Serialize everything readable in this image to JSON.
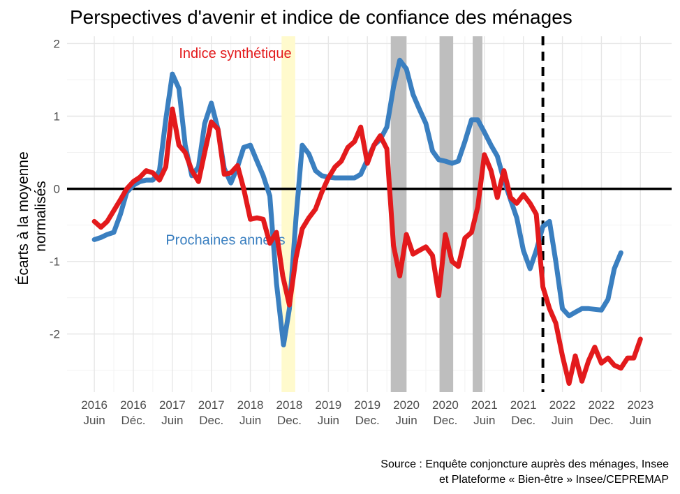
{
  "chart_data": {
    "type": "line",
    "title": "Perspectives d'avenir et indice de confiance des ménages",
    "ylabel_lines": [
      "Écarts à la moyenne",
      "normalisés"
    ],
    "caption_lines": [
      "Source : Enquête conjoncture auprès des ménages, Insee",
      "et Plateforme « Bien-être » Insee/CEPREMAP"
    ],
    "ylim": [
      -2.8,
      2.1
    ],
    "yticks": [
      -2,
      -1,
      0,
      1,
      2
    ],
    "xlim": [
      -0.7,
      14.8
    ],
    "xticks": [
      {
        "pos": 0,
        "line1": "2016",
        "line2": "Juin"
      },
      {
        "pos": 1,
        "line1": "2016",
        "line2": "Déc."
      },
      {
        "pos": 2,
        "line1": "2017",
        "line2": "Juin"
      },
      {
        "pos": 3,
        "line1": "2017",
        "line2": "Dec."
      },
      {
        "pos": 4,
        "line1": "2018",
        "line2": "Juin"
      },
      {
        "pos": 5,
        "line1": "2018",
        "line2": "Dec."
      },
      {
        "pos": 6,
        "line1": "2019",
        "line2": "Juin"
      },
      {
        "pos": 7,
        "line1": "2019",
        "line2": "Dec."
      },
      {
        "pos": 8,
        "line1": "2020",
        "line2": "Juin"
      },
      {
        "pos": 9,
        "line1": "2020",
        "line2": "Dec."
      },
      {
        "pos": 10,
        "line1": "2021",
        "line2": "Juin"
      },
      {
        "pos": 11,
        "line1": "2021",
        "line2": "Dec."
      },
      {
        "pos": 12,
        "line1": "2022",
        "line2": "Juin"
      },
      {
        "pos": 13,
        "line1": "2022",
        "line2": "Dec."
      },
      {
        "pos": 14,
        "line1": "2023",
        "line2": "Juin"
      }
    ],
    "grid": true,
    "hline": 0,
    "vline": 11.5,
    "bands": [
      {
        "from": 4.8,
        "to": 5.15,
        "color": "#fffacd"
      },
      {
        "from": 7.6,
        "to": 8.0,
        "color": "#bebebe"
      },
      {
        "from": 8.85,
        "to": 9.2,
        "color": "#bebebe"
      },
      {
        "from": 9.7,
        "to": 9.95,
        "color": "#bebebe"
      }
    ],
    "series": [
      {
        "name": "Prochaines années",
        "color": "#3a7fc0",
        "label_x": 1.83,
        "label_y": -0.77,
        "points": [
          [
            0,
            -0.7
          ],
          [
            0.17,
            -0.67
          ],
          [
            0.33,
            -0.63
          ],
          [
            0.5,
            -0.6
          ],
          [
            0.67,
            -0.35
          ],
          [
            0.83,
            -0.05
          ],
          [
            1.0,
            0.05
          ],
          [
            1.17,
            0.1
          ],
          [
            1.33,
            0.12
          ],
          [
            1.5,
            0.12
          ],
          [
            1.67,
            0.25
          ],
          [
            1.83,
            0.95
          ],
          [
            2.0,
            1.58
          ],
          [
            2.17,
            1.38
          ],
          [
            2.33,
            0.6
          ],
          [
            2.5,
            0.18
          ],
          [
            2.67,
            0.3
          ],
          [
            2.83,
            0.9
          ],
          [
            3.0,
            1.18
          ],
          [
            3.17,
            0.82
          ],
          [
            3.33,
            0.28
          ],
          [
            3.5,
            0.08
          ],
          [
            3.67,
            0.3
          ],
          [
            3.83,
            0.57
          ],
          [
            4.0,
            0.6
          ],
          [
            4.17,
            0.38
          ],
          [
            4.33,
            0.18
          ],
          [
            4.5,
            -0.1
          ],
          [
            4.67,
            -1.3
          ],
          [
            4.85,
            -2.15
          ],
          [
            5.0,
            -1.65
          ],
          [
            5.17,
            -0.4
          ],
          [
            5.33,
            0.6
          ],
          [
            5.5,
            0.48
          ],
          [
            5.67,
            0.25
          ],
          [
            5.83,
            0.18
          ],
          [
            6.0,
            0.16
          ],
          [
            6.17,
            0.15
          ],
          [
            6.33,
            0.15
          ],
          [
            6.5,
            0.15
          ],
          [
            6.67,
            0.15
          ],
          [
            6.83,
            0.2
          ],
          [
            7.0,
            0.4
          ],
          [
            7.17,
            0.6
          ],
          [
            7.33,
            0.68
          ],
          [
            7.5,
            0.85
          ],
          [
            7.67,
            1.4
          ],
          [
            7.83,
            1.77
          ],
          [
            8.0,
            1.65
          ],
          [
            8.17,
            1.3
          ],
          [
            8.33,
            1.1
          ],
          [
            8.5,
            0.9
          ],
          [
            8.67,
            0.52
          ],
          [
            8.83,
            0.4
          ],
          [
            9.0,
            0.38
          ],
          [
            9.17,
            0.35
          ],
          [
            9.33,
            0.38
          ],
          [
            9.5,
            0.65
          ],
          [
            9.67,
            0.95
          ],
          [
            9.83,
            0.95
          ],
          [
            10.0,
            0.78
          ],
          [
            10.17,
            0.6
          ],
          [
            10.33,
            0.45
          ],
          [
            10.5,
            0.12
          ],
          [
            10.67,
            -0.15
          ],
          [
            10.83,
            -0.4
          ],
          [
            11.0,
            -0.85
          ],
          [
            11.17,
            -1.1
          ],
          [
            11.33,
            -0.85
          ],
          [
            11.5,
            -0.52
          ],
          [
            11.67,
            -0.45
          ],
          [
            11.83,
            -1.0
          ],
          [
            12.0,
            -1.65
          ],
          [
            12.17,
            -1.75
          ],
          [
            12.33,
            -1.7
          ],
          [
            12.5,
            -1.65
          ],
          [
            12.67,
            -1.65
          ],
          [
            12.83,
            -1.66
          ],
          [
            13.0,
            -1.67
          ],
          [
            13.17,
            -1.52
          ],
          [
            13.33,
            -1.1
          ],
          [
            13.5,
            -0.88
          ]
        ]
      },
      {
        "name": "Indice synthétique",
        "color": "#e31a1c",
        "label_x": 2.17,
        "label_y": 1.8,
        "points": [
          [
            0,
            -0.45
          ],
          [
            0.17,
            -0.53
          ],
          [
            0.33,
            -0.45
          ],
          [
            0.5,
            -0.3
          ],
          [
            0.67,
            -0.15
          ],
          [
            0.83,
            0.0
          ],
          [
            1.0,
            0.1
          ],
          [
            1.17,
            0.16
          ],
          [
            1.33,
            0.25
          ],
          [
            1.5,
            0.22
          ],
          [
            1.67,
            0.12
          ],
          [
            1.83,
            0.3
          ],
          [
            2.0,
            1.1
          ],
          [
            2.17,
            0.6
          ],
          [
            2.33,
            0.5
          ],
          [
            2.5,
            0.25
          ],
          [
            2.67,
            0.1
          ],
          [
            2.83,
            0.5
          ],
          [
            3.0,
            0.92
          ],
          [
            3.17,
            0.82
          ],
          [
            3.33,
            0.2
          ],
          [
            3.5,
            0.22
          ],
          [
            3.67,
            0.32
          ],
          [
            3.83,
            0.0
          ],
          [
            4.0,
            -0.42
          ],
          [
            4.17,
            -0.4
          ],
          [
            4.33,
            -0.42
          ],
          [
            4.5,
            -0.75
          ],
          [
            4.67,
            -0.6
          ],
          [
            4.83,
            -1.2
          ],
          [
            5.0,
            -1.6
          ],
          [
            5.17,
            -0.95
          ],
          [
            5.33,
            -0.55
          ],
          [
            5.5,
            -0.4
          ],
          [
            5.67,
            -0.28
          ],
          [
            5.83,
            -0.05
          ],
          [
            6.0,
            0.15
          ],
          [
            6.17,
            0.3
          ],
          [
            6.33,
            0.38
          ],
          [
            6.5,
            0.57
          ],
          [
            6.67,
            0.65
          ],
          [
            6.83,
            0.85
          ],
          [
            7.0,
            0.35
          ],
          [
            7.17,
            0.6
          ],
          [
            7.33,
            0.73
          ],
          [
            7.5,
            0.55
          ],
          [
            7.67,
            -0.78
          ],
          [
            7.83,
            -1.2
          ],
          [
            8.0,
            -0.63
          ],
          [
            8.17,
            -0.9
          ],
          [
            8.33,
            -0.85
          ],
          [
            8.5,
            -0.8
          ],
          [
            8.67,
            -0.92
          ],
          [
            8.83,
            -1.47
          ],
          [
            9.0,
            -0.63
          ],
          [
            9.17,
            -1.0
          ],
          [
            9.33,
            -1.07
          ],
          [
            9.5,
            -0.68
          ],
          [
            9.67,
            -0.6
          ],
          [
            9.83,
            -0.25
          ],
          [
            10.0,
            0.47
          ],
          [
            10.17,
            0.25
          ],
          [
            10.33,
            -0.12
          ],
          [
            10.5,
            0.25
          ],
          [
            10.67,
            -0.12
          ],
          [
            10.83,
            -0.2
          ],
          [
            11.0,
            -0.08
          ],
          [
            11.17,
            -0.2
          ],
          [
            11.33,
            -0.35
          ],
          [
            11.5,
            -1.35
          ],
          [
            11.67,
            -1.65
          ],
          [
            11.83,
            -1.85
          ],
          [
            12.0,
            -2.3
          ],
          [
            12.17,
            -2.68
          ],
          [
            12.33,
            -2.3
          ],
          [
            12.5,
            -2.65
          ],
          [
            12.67,
            -2.37
          ],
          [
            12.83,
            -2.18
          ],
          [
            13.0,
            -2.4
          ],
          [
            13.17,
            -2.33
          ],
          [
            13.33,
            -2.43
          ],
          [
            13.5,
            -2.47
          ],
          [
            13.67,
            -2.33
          ],
          [
            13.83,
            -2.33
          ],
          [
            14.0,
            -2.07
          ]
        ]
      }
    ]
  }
}
